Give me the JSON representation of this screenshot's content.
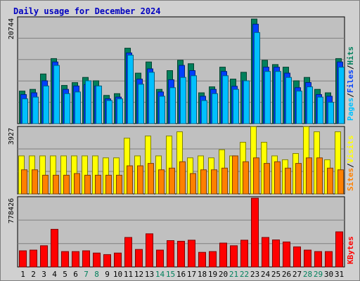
{
  "title": "Daily usage for December 2024",
  "colors": {
    "background": "#d0d0d0",
    "plot": "#c0c0c0",
    "hits": "#00805c",
    "files": "#0040ff",
    "pages": "#00c0ff",
    "visits": "#ffff00",
    "sites": "#ff8000",
    "kbytes": "#ff0000",
    "weekend": "#00805c",
    "weekday": "#000000"
  },
  "chart_data": [
    {
      "type": "bar",
      "name": "hits-files-pages",
      "categories": [
        "1",
        "2",
        "3",
        "4",
        "5",
        "6",
        "7",
        "8",
        "9",
        "10",
        "11",
        "12",
        "13",
        "14",
        "15",
        "16",
        "17",
        "18",
        "19",
        "20",
        "21",
        "22",
        "23",
        "24",
        "25",
        "26",
        "27",
        "28",
        "29",
        "30",
        "31"
      ],
      "weekend": [
        false,
        false,
        false,
        false,
        false,
        false,
        true,
        true,
        false,
        false,
        false,
        false,
        false,
        true,
        true,
        false,
        false,
        false,
        false,
        false,
        true,
        true,
        false,
        false,
        false,
        false,
        false,
        true,
        true,
        false,
        false
      ],
      "ymax_label": "20744",
      "ylim": [
        0,
        20744
      ],
      "series": [
        {
          "name": "Hits",
          "values": [
            6450,
            6790,
            9840,
            12900,
            7570,
            8130,
            9160,
            8490,
            5600,
            5940,
            14960,
            10010,
            12220,
            6790,
            10520,
            12560,
            11880,
            6110,
            7300,
            11200,
            8830,
            10180,
            20740,
            12560,
            11710,
            11200,
            8490,
            9160,
            6790,
            6110,
            12900
          ]
        },
        {
          "name": "Files",
          "values": [
            5770,
            6110,
            8490,
            12220,
            6790,
            7470,
            7740,
            7470,
            4920,
            5260,
            14020,
            8830,
            10860,
            6280,
            8690,
            11540,
            10520,
            5430,
            6790,
            10350,
            7410,
            8490,
            19720,
            11200,
            11200,
            10010,
            7130,
            8150,
            5770,
            5430,
            12220
          ]
        },
        {
          "name": "Pages",
          "values": [
            4920,
            5260,
            7470,
            11540,
            5940,
            6280,
            8490,
            7470,
            4580,
            4920,
            13580,
            7810,
            10180,
            5430,
            7130,
            9160,
            9500,
            4580,
            5940,
            9500,
            6790,
            8490,
            18060,
            10350,
            10350,
            9160,
            6450,
            7300,
            5260,
            4240,
            11200
          ]
        }
      ],
      "legend": [
        "Pages",
        "Files",
        "Hits"
      ]
    },
    {
      "type": "bar",
      "name": "visits-sites",
      "categories": [
        "1",
        "2",
        "3",
        "4",
        "5",
        "6",
        "7",
        "8",
        "9",
        "10",
        "11",
        "12",
        "13",
        "14",
        "15",
        "16",
        "17",
        "18",
        "19",
        "20",
        "21",
        "22",
        "23",
        "24",
        "25",
        "26",
        "27",
        "28",
        "29",
        "30",
        "31"
      ],
      "ymax_label": "3927",
      "ylim": [
        0,
        3927
      ],
      "series": [
        {
          "name": "Visits",
          "values": [
            2260,
            2260,
            2260,
            2260,
            2260,
            2260,
            2260,
            2260,
            2140,
            2140,
            3310,
            2260,
            3440,
            2260,
            3440,
            3690,
            2140,
            2260,
            2140,
            2620,
            2260,
            3070,
            4000,
            3070,
            2260,
            2030,
            2400,
            4000,
            3690,
            2030,
            3690
          ]
        },
        {
          "name": "Sites",
          "values": [
            1430,
            1430,
            1110,
            1110,
            1110,
            1210,
            1110,
            1110,
            1110,
            1110,
            1670,
            1670,
            1810,
            1430,
            1530,
            1910,
            1210,
            1430,
            1430,
            1530,
            2260,
            1910,
            2140,
            1810,
            1910,
            1530,
            1810,
            2140,
            2140,
            1530,
            1430
          ]
        }
      ],
      "legend": [
        "Sites",
        "Visits"
      ]
    },
    {
      "type": "bar",
      "name": "kbytes",
      "categories": [
        "1",
        "2",
        "3",
        "4",
        "5",
        "6",
        "7",
        "8",
        "9",
        "10",
        "11",
        "12",
        "13",
        "14",
        "15",
        "16",
        "17",
        "18",
        "19",
        "20",
        "21",
        "22",
        "23",
        "24",
        "25",
        "26",
        "27",
        "28",
        "29",
        "30",
        "31"
      ],
      "ymax_label": "778426",
      "ylim": [
        0,
        778426
      ],
      "series": [
        {
          "name": "KBytes",
          "values": [
            183000,
            191000,
            240000,
            426000,
            174000,
            174000,
            183000,
            157000,
            140000,
            157000,
            334000,
            198000,
            375000,
            191000,
            298000,
            291000,
            303000,
            165000,
            174000,
            270000,
            240000,
            303000,
            778000,
            334000,
            306000,
            283000,
            227000,
            191000,
            174000,
            174000,
            397000
          ]
        }
      ],
      "legend": [
        "KBytes"
      ]
    }
  ]
}
